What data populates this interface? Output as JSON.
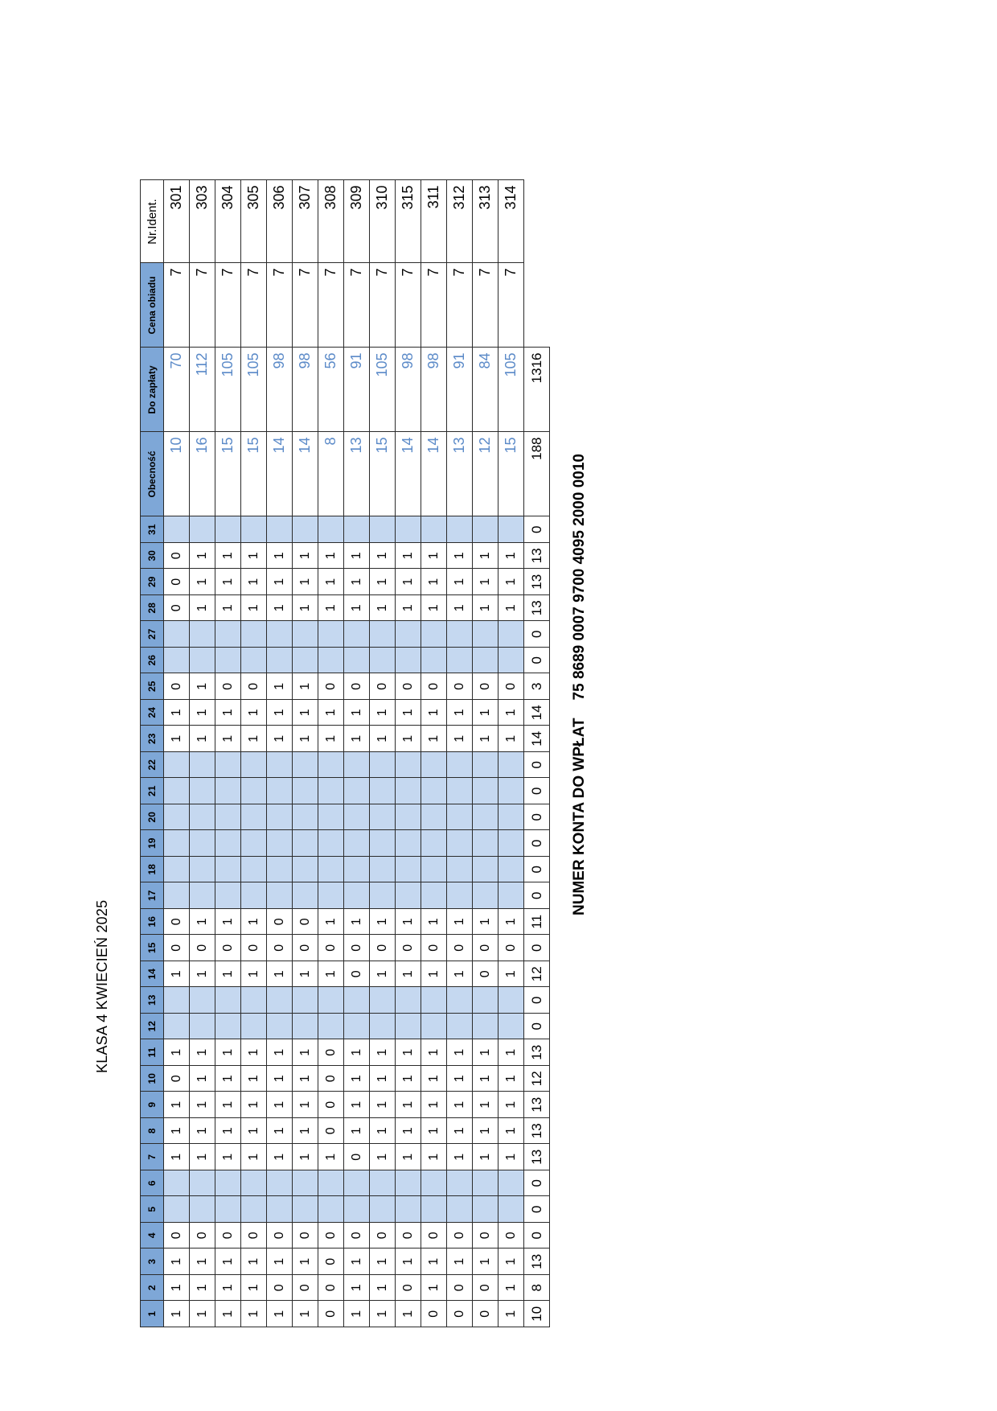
{
  "title": "KLASA 4 KWIECIEŃ 2025",
  "headers": {
    "days": [
      "1",
      "2",
      "3",
      "4",
      "5",
      "6",
      "7",
      "8",
      "9",
      "10",
      "11",
      "12",
      "13",
      "14",
      "15",
      "16",
      "17",
      "18",
      "19",
      "20",
      "21",
      "22",
      "23",
      "24",
      "25",
      "26",
      "27",
      "28",
      "29",
      "30",
      "31"
    ],
    "obecnosc": "Obecność",
    "do_zaplaty": "Do zapłaty",
    "cena_obiadu": "Cena obiadu",
    "nr_ident": "Nr.Ident."
  },
  "weekend_days": [
    5,
    6,
    12,
    13,
    17,
    18,
    19,
    20,
    21,
    22,
    26,
    27,
    31
  ],
  "rows": [
    {
      "days": [
        "1",
        "1",
        "1",
        "0",
        "",
        "",
        "1",
        "1",
        "1",
        "0",
        "1",
        "",
        "",
        "1",
        "0",
        "0",
        "",
        "",
        "",
        "",
        "",
        "",
        "1",
        "1",
        "0",
        "",
        "",
        "0",
        "0",
        "0",
        ""
      ],
      "obecnosc": "10",
      "do_zaplaty": "70",
      "cena": "7",
      "id": "301"
    },
    {
      "days": [
        "1",
        "1",
        "1",
        "0",
        "",
        "",
        "1",
        "1",
        "1",
        "1",
        "1",
        "",
        "",
        "1",
        "0",
        "1",
        "",
        "",
        "",
        "",
        "",
        "",
        "1",
        "1",
        "1",
        "",
        "",
        "1",
        "1",
        "1",
        ""
      ],
      "obecnosc": "16",
      "do_zaplaty": "112",
      "cena": "7",
      "id": "303"
    },
    {
      "days": [
        "1",
        "1",
        "1",
        "0",
        "",
        "",
        "1",
        "1",
        "1",
        "1",
        "1",
        "",
        "",
        "1",
        "0",
        "1",
        "",
        "",
        "",
        "",
        "",
        "",
        "1",
        "1",
        "0",
        "",
        "",
        "1",
        "1",
        "1",
        ""
      ],
      "obecnosc": "15",
      "do_zaplaty": "105",
      "cena": "7",
      "id": "304"
    },
    {
      "days": [
        "1",
        "1",
        "1",
        "0",
        "",
        "",
        "1",
        "1",
        "1",
        "1",
        "1",
        "",
        "",
        "1",
        "0",
        "1",
        "",
        "",
        "",
        "",
        "",
        "",
        "1",
        "1",
        "0",
        "",
        "",
        "1",
        "1",
        "1",
        ""
      ],
      "obecnosc": "15",
      "do_zaplaty": "105",
      "cena": "7",
      "id": "305"
    },
    {
      "days": [
        "1",
        "0",
        "1",
        "0",
        "",
        "",
        "1",
        "1",
        "1",
        "1",
        "1",
        "",
        "",
        "1",
        "0",
        "0",
        "",
        "",
        "",
        "",
        "",
        "",
        "1",
        "1",
        "1",
        "",
        "",
        "1",
        "1",
        "1",
        ""
      ],
      "obecnosc": "14",
      "do_zaplaty": "98",
      "cena": "7",
      "id": "306"
    },
    {
      "days": [
        "1",
        "0",
        "1",
        "0",
        "",
        "",
        "1",
        "1",
        "1",
        "1",
        "1",
        "",
        "",
        "1",
        "0",
        "0",
        "",
        "",
        "",
        "",
        "",
        "",
        "1",
        "1",
        "1",
        "",
        "",
        "1",
        "1",
        "1",
        ""
      ],
      "obecnosc": "14",
      "do_zaplaty": "98",
      "cena": "7",
      "id": "307"
    },
    {
      "days": [
        "0",
        "0",
        "0",
        "0",
        "",
        "",
        "1",
        "0",
        "0",
        "0",
        "0",
        "",
        "",
        "1",
        "0",
        "1",
        "",
        "",
        "",
        "",
        "",
        "",
        "1",
        "1",
        "0",
        "",
        "",
        "1",
        "1",
        "1",
        ""
      ],
      "obecnosc": "8",
      "do_zaplaty": "56",
      "cena": "7",
      "id": "308"
    },
    {
      "days": [
        "1",
        "1",
        "1",
        "0",
        "",
        "",
        "0",
        "1",
        "1",
        "1",
        "1",
        "",
        "",
        "0",
        "0",
        "1",
        "",
        "",
        "",
        "",
        "",
        "",
        "1",
        "1",
        "0",
        "",
        "",
        "1",
        "1",
        "1",
        ""
      ],
      "obecnosc": "13",
      "do_zaplaty": "91",
      "cena": "7",
      "id": "309"
    },
    {
      "days": [
        "1",
        "1",
        "1",
        "0",
        "",
        "",
        "1",
        "1",
        "1",
        "1",
        "1",
        "",
        "",
        "1",
        "0",
        "1",
        "",
        "",
        "",
        "",
        "",
        "",
        "1",
        "1",
        "0",
        "",
        "",
        "1",
        "1",
        "1",
        ""
      ],
      "obecnosc": "15",
      "do_zaplaty": "105",
      "cena": "7",
      "id": "310"
    },
    {
      "days": [
        "1",
        "0",
        "1",
        "0",
        "",
        "",
        "1",
        "1",
        "1",
        "1",
        "1",
        "",
        "",
        "1",
        "0",
        "1",
        "",
        "",
        "",
        "",
        "",
        "",
        "1",
        "1",
        "0",
        "",
        "",
        "1",
        "1",
        "1",
        ""
      ],
      "obecnosc": "14",
      "do_zaplaty": "98",
      "cena": "7",
      "id": "315"
    },
    {
      "days": [
        "0",
        "1",
        "1",
        "0",
        "",
        "",
        "1",
        "1",
        "1",
        "1",
        "1",
        "",
        "",
        "1",
        "0",
        "1",
        "",
        "",
        "",
        "",
        "",
        "",
        "1",
        "1",
        "0",
        "",
        "",
        "1",
        "1",
        "1",
        ""
      ],
      "obecnosc": "14",
      "do_zaplaty": "98",
      "cena": "7",
      "id": "311"
    },
    {
      "days": [
        "0",
        "0",
        "1",
        "0",
        "",
        "",
        "1",
        "1",
        "1",
        "1",
        "1",
        "",
        "",
        "1",
        "0",
        "1",
        "",
        "",
        "",
        "",
        "",
        "",
        "1",
        "1",
        "0",
        "",
        "",
        "1",
        "1",
        "1",
        ""
      ],
      "obecnosc": "13",
      "do_zaplaty": "91",
      "cena": "7",
      "id": "312"
    },
    {
      "days": [
        "0",
        "0",
        "1",
        "0",
        "",
        "",
        "1",
        "1",
        "1",
        "1",
        "1",
        "",
        "",
        "0",
        "0",
        "1",
        "",
        "",
        "",
        "",
        "",
        "",
        "1",
        "1",
        "0",
        "",
        "",
        "1",
        "1",
        "1",
        ""
      ],
      "obecnosc": "12",
      "do_zaplaty": "84",
      "cena": "7",
      "id": "313"
    },
    {
      "days": [
        "1",
        "1",
        "1",
        "0",
        "",
        "",
        "1",
        "1",
        "1",
        "1",
        "1",
        "",
        "",
        "1",
        "0",
        "1",
        "",
        "",
        "",
        "",
        "",
        "",
        "1",
        "1",
        "0",
        "",
        "",
        "1",
        "1",
        "1",
        ""
      ],
      "obecnosc": "15",
      "do_zaplaty": "105",
      "cena": "7",
      "id": "314"
    }
  ],
  "totals": {
    "days": [
      "10",
      "8",
      "13",
      "0",
      "0",
      "0",
      "13",
      "13",
      "13",
      "12",
      "13",
      "0",
      "0",
      "12",
      "0",
      "11",
      "0",
      "0",
      "0",
      "0",
      "0",
      "0",
      "14",
      "14",
      "3",
      "0",
      "0",
      "13",
      "13",
      "13",
      "0"
    ],
    "obecnosc": "188",
    "do_zaplaty": "1316"
  },
  "account": {
    "label": "NUMER KONTA  DO WPŁAT",
    "number": "75 8689 0007 9700 4095 2000 0010"
  },
  "colors": {
    "header_fill": "#7ea7d7",
    "weekend_fill": "#c5d8f0",
    "calculated_text": "#5b8ac8"
  }
}
